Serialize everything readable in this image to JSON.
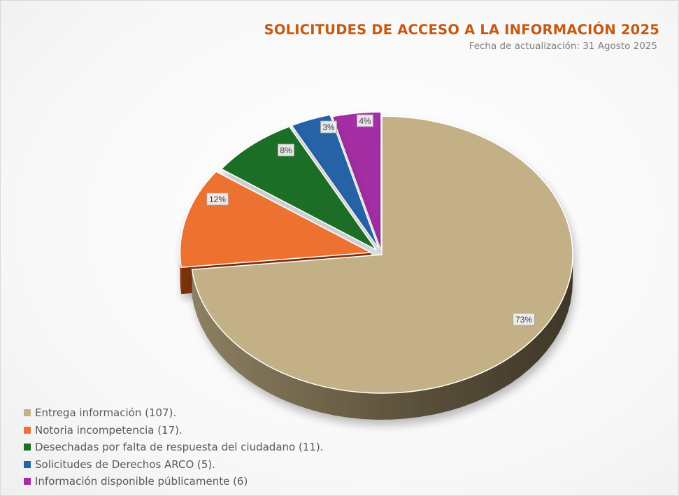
{
  "chart_title": "SOLICITUDES DE ACCESO A LA INFORMACIÓN 2025",
  "chart_subtitle": "Fecha de actualización: 31 Agosto 2025",
  "chart_data": {
    "type": "pie",
    "title": "SOLICITUDES DE ACCESO A LA INFORMACIÓN 2025",
    "subtitle": "Fecha de actualización: 31 Agosto 2025",
    "style": "3d-exploded",
    "legend_position": "bottom-left",
    "slices": [
      {
        "label": "Entrega información (107).",
        "value": 107,
        "percent_label": "73%",
        "color": "#c4b086",
        "side_color": "#6d6248"
      },
      {
        "label": "Notoria incompetencia (17).",
        "value": 17,
        "percent_label": "12%",
        "color": "#ed7233",
        "side_color": "#8a3a12"
      },
      {
        "label": "Desechadas por falta de respuesta del ciudadano (11).",
        "value": 11,
        "percent_label": "8%",
        "color": "#1d6e25",
        "side_color": "#0d3a12"
      },
      {
        "label": "Solicitudes de Derechos ARCO (5).",
        "value": 5,
        "percent_label": "3%",
        "color": "#2762a6",
        "side_color": "#123560"
      },
      {
        "label": "Información disponible públicamente (6)",
        "value": 6,
        "percent_label": "4%",
        "color": "#a42ea3",
        "side_color": "#5a165a"
      }
    ]
  },
  "colors": {
    "title": "#c55a11",
    "subtitle": "#7f7f7f",
    "legend_text": "#595959"
  }
}
